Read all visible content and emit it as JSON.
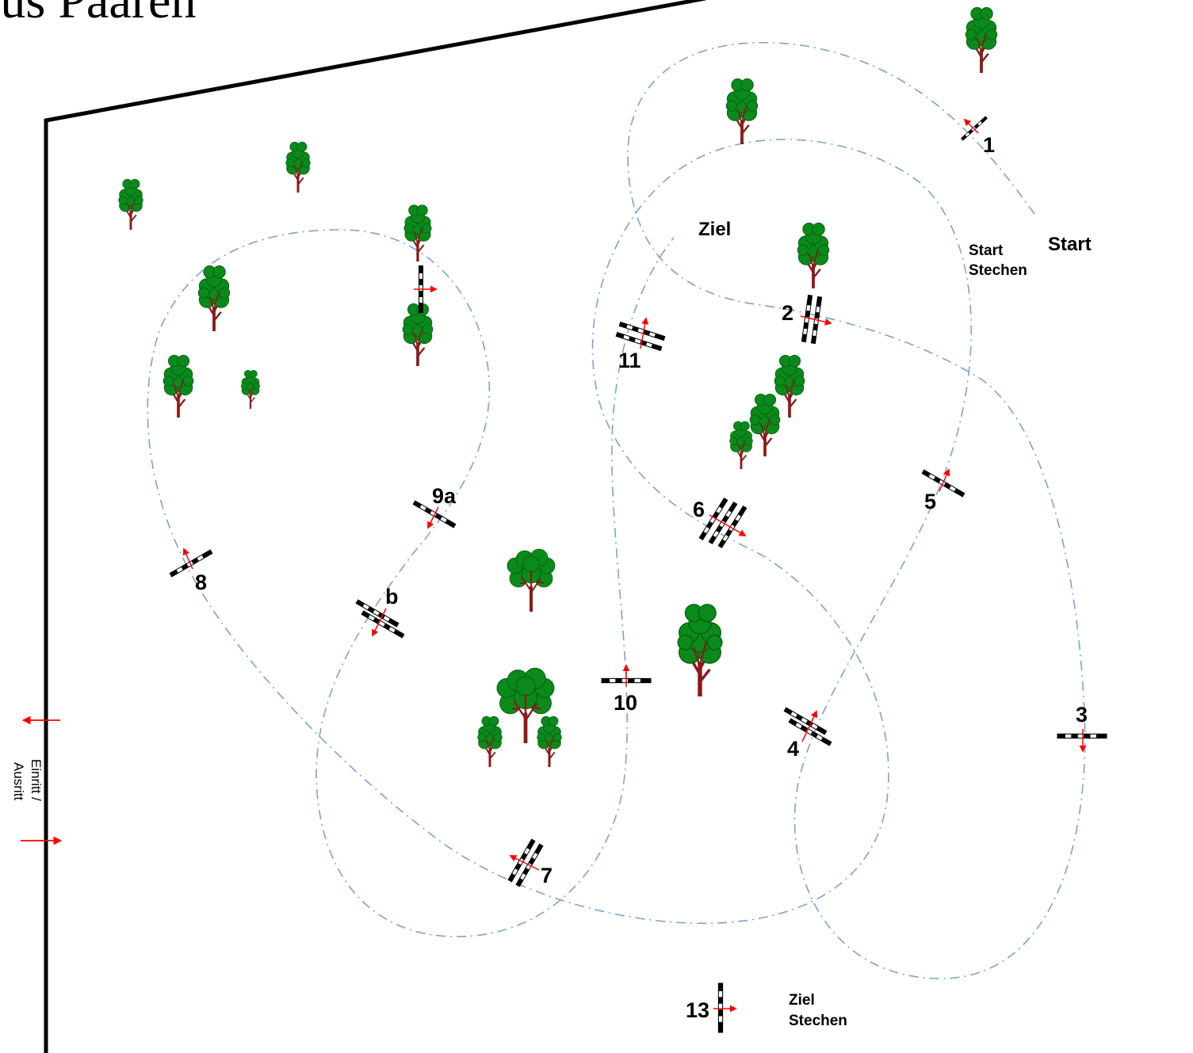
{
  "title": "aus Paaren",
  "labels": {
    "ziel": "Ziel",
    "start": "Start",
    "start_stechen_1": "Start",
    "start_stechen_2": "Stechen",
    "ziel_stechen_1": "Ziel",
    "ziel_stechen_2": "Stechen",
    "einritt_1": "Einritt /",
    "einritt_2": "Ausritt"
  },
  "obstacles": [
    "1",
    "2",
    "3",
    "4",
    "5",
    "6",
    "7",
    "8",
    "9a",
    "b",
    "10",
    "11",
    "13"
  ],
  "colors": {
    "route": "#7ba3d4",
    "tree_foliage": "#0a8a1a",
    "tree_trunk": "#8b1a1a",
    "arrow": "#ff0000",
    "fence": "#000000"
  },
  "icons": [
    "tree-icon",
    "obstacle-icon",
    "direction-arrow-icon"
  ]
}
